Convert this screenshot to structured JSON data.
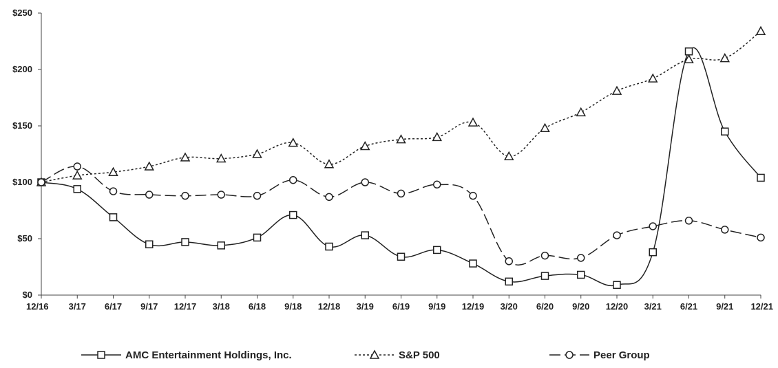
{
  "chart_data": {
    "type": "line",
    "title": "",
    "xlabel": "",
    "ylabel": "",
    "categories": [
      "12/16",
      "3/17",
      "6/17",
      "9/17",
      "12/17",
      "3/18",
      "6/18",
      "9/18",
      "12/18",
      "3/19",
      "6/19",
      "9/19",
      "12/19",
      "3/20",
      "6/20",
      "9/20",
      "12/20",
      "3/21",
      "6/21",
      "9/21",
      "12/21"
    ],
    "y_ticks": [
      "$0",
      "$50",
      "$100",
      "$150",
      "$200",
      "$250"
    ],
    "y_tick_values": [
      0,
      50,
      100,
      150,
      200,
      250
    ],
    "ylim": [
      0,
      250
    ],
    "grid": false,
    "legend_position": "bottom",
    "series": [
      {
        "name": "AMC Entertainment Holdings, Inc.",
        "marker": "square",
        "dash": "solid",
        "color": "#222222",
        "values": [
          100,
          94,
          69,
          45,
          47,
          44,
          51,
          71,
          43,
          53,
          34,
          40,
          28,
          12,
          17,
          18,
          9,
          38,
          216,
          145,
          104
        ]
      },
      {
        "name": "S&P 500",
        "marker": "triangle",
        "dash": "dotted",
        "color": "#222222",
        "values": [
          100,
          106,
          109,
          114,
          122,
          121,
          125,
          135,
          116,
          132,
          138,
          140,
          153,
          123,
          148,
          162,
          181,
          192,
          209,
          210,
          234
        ]
      },
      {
        "name": "Peer Group",
        "marker": "circle",
        "dash": "dashed",
        "color": "#222222",
        "values": [
          100,
          114,
          92,
          89,
          88,
          89,
          88,
          102,
          87,
          100,
          90,
          98,
          88,
          30,
          35,
          33,
          53,
          61,
          66,
          58,
          51
        ]
      }
    ]
  }
}
